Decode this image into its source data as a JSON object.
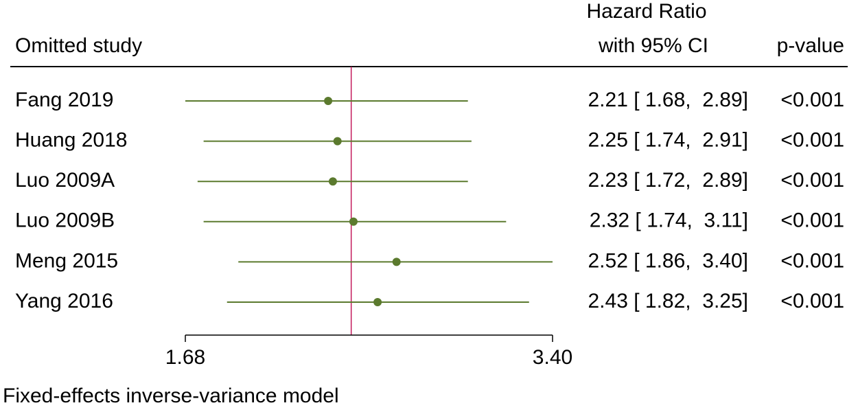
{
  "chart_data": {
    "type": "forest",
    "header_label": "Omitted study",
    "header_estimate": [
      "Hazard Ratio",
      "with 95% CI"
    ],
    "header_p": "p-value",
    "categories": [
      "Fang 2019",
      "Huang 2018",
      "Luo 2009A",
      "Luo 2009B",
      "Meng 2015",
      "Yang 2016"
    ],
    "values": [
      2.21,
      2.25,
      2.23,
      2.32,
      2.52,
      2.43
    ],
    "lower": [
      1.68,
      1.74,
      1.72,
      1.74,
      1.86,
      1.82
    ],
    "upper": [
      2.89,
      2.91,
      2.89,
      3.11,
      3.4,
      3.25
    ],
    "value_labels": [
      "2.21 [ 1.68,  2.89]",
      "2.25 [ 1.74,  2.91]",
      "2.23 [ 1.72,  2.89]",
      "2.32 [ 1.74,  3.11]",
      "2.52 [ 1.86,  3.40]",
      "2.43 [ 1.82,  3.25]"
    ],
    "p_values": [
      "<0.001",
      "<0.001",
      "<0.001",
      "<0.001",
      "<0.001",
      "<0.001"
    ],
    "reference_line": 2.31,
    "xlim": [
      1.68,
      3.4
    ],
    "xticks": [
      1.68,
      {
        "value": 3.4,
        "label": "3.40"
      }
    ],
    "log_scale": true,
    "color": "#5b7a2e",
    "reference_color": "#c2185b",
    "note": "Fixed-effects inverse-variance model"
  }
}
